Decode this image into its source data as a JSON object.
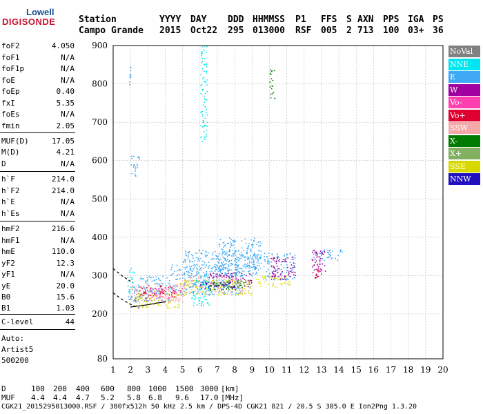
{
  "logo": {
    "line1": "Lowell",
    "line2": "DIGISONDE"
  },
  "header": {
    "row1": [
      "Station",
      "YYYY",
      "DAY",
      "DDD",
      "HHMMSS",
      "P1",
      "FFS",
      "S",
      "AXN",
      "PPS",
      "IGA",
      "PS"
    ],
    "row2": [
      "Campo Grande",
      "2015",
      "Oct22",
      "295",
      "013000",
      "RSF",
      "005",
      "2",
      "713",
      "100",
      "03+",
      "36"
    ]
  },
  "params": [
    {
      "name": "foF2",
      "value": "4.050"
    },
    {
      "name": "foF1",
      "value": "N/A"
    },
    {
      "name": "foF1p",
      "value": "N/A"
    },
    {
      "name": "foE",
      "value": "N/A"
    },
    {
      "name": "foEp",
      "value": "0.40"
    },
    {
      "name": "fxI",
      "value": "5.35"
    },
    {
      "name": "foEs",
      "value": "N/A"
    },
    {
      "name": "fmin",
      "value": "2.05"
    },
    {
      "name": "MUF(D)",
      "value": "17.05"
    },
    {
      "name": "M(D)",
      "value": "4.21"
    },
    {
      "name": "D",
      "value": "N/A"
    },
    {
      "name": "h`F",
      "value": "214.0"
    },
    {
      "name": "h`F2",
      "value": "214.0"
    },
    {
      "name": "h`E",
      "value": "N/A"
    },
    {
      "name": "h`Es",
      "value": "N/A"
    },
    {
      "name": "hmF2",
      "value": "216.6"
    },
    {
      "name": "hmF1",
      "value": "N/A"
    },
    {
      "name": "hmE",
      "value": "110.0"
    },
    {
      "name": "yF2",
      "value": "12.3"
    },
    {
      "name": "yF1",
      "value": "N/A"
    },
    {
      "name": "yE",
      "value": "20.0"
    },
    {
      "name": "B0",
      "value": "15.6"
    },
    {
      "name": "B1",
      "value": "1.03"
    },
    {
      "name": "C-level",
      "value": "44"
    }
  ],
  "auto": {
    "line1": "Auto:",
    "line2": "Artist5",
    "line3": "500200"
  },
  "legend": [
    {
      "label": "NoVal",
      "color": "#808080"
    },
    {
      "label": "NNE",
      "color": "#00e5ee"
    },
    {
      "label": "E",
      "color": "#3fa9f5"
    },
    {
      "label": "W",
      "color": "#a000a0"
    },
    {
      "label": "Vo-",
      "color": "#ff40b0"
    },
    {
      "label": "Vo+",
      "color": "#e00030"
    },
    {
      "label": "SSW",
      "color": "#f4a8a8"
    },
    {
      "label": "X-",
      "color": "#007a00"
    },
    {
      "label": "X+",
      "color": "#80b060"
    },
    {
      "label": "SSE",
      "color": "#d8d800"
    },
    {
      "label": "NNW",
      "color": "#2010c0"
    }
  ],
  "footer": {
    "d_label": "D",
    "d_values": [
      "100",
      "200",
      "400",
      "600",
      "800",
      "1000",
      "1500",
      "3000",
      "[km]"
    ],
    "muf_label": "MUF",
    "muf_values": [
      "4.4",
      "4.4",
      "4.7",
      "5.2",
      "5.8",
      "6.8",
      "9.6",
      "17.0",
      "[MHz]"
    ],
    "file_line": "CGK21_2015295013000.RSF / 380fx512h 50 kHz 2.5 km / DPS-4D CGK21 821 / 20.5 S 305.0 E Ion2Png 1.3.20"
  },
  "chart_data": {
    "type": "scatter",
    "xlim": [
      1,
      20
    ],
    "ylim": [
      80,
      900
    ],
    "x_ticks": [
      1,
      2,
      3,
      4,
      5,
      6,
      7,
      8,
      9,
      10,
      11,
      12,
      13,
      14,
      15,
      16,
      17,
      18,
      19,
      20
    ],
    "y_ticks": [
      80,
      200,
      300,
      400,
      500,
      600,
      700,
      800,
      900
    ],
    "grid": true,
    "legend_position": "right",
    "trace_fitted": [
      [
        2.0,
        218
      ],
      [
        2.5,
        221
      ],
      [
        3.0,
        224
      ],
      [
        3.5,
        228
      ],
      [
        4.05,
        232
      ]
    ],
    "trace_dashed": [
      [
        1.0,
        255
      ],
      [
        1.5,
        238
      ],
      [
        2.0,
        225
      ],
      [
        2.5,
        215
      ]
    ],
    "trace_upper_dashed": [
      [
        1.0,
        318
      ],
      [
        1.5,
        300
      ],
      [
        2.0,
        285
      ]
    ],
    "series": [
      {
        "name": "E",
        "clusters": [
          [
            1.8,
            2.4,
            225,
            270
          ],
          [
            2.4,
            4.2,
            235,
            300
          ],
          [
            4.2,
            8.5,
            250,
            330
          ],
          [
            5,
            9.5,
            300,
            370
          ],
          [
            7,
            9.5,
            320,
            400
          ],
          [
            9.6,
            11.5,
            290,
            360
          ],
          [
            12.5,
            14.2,
            340,
            370
          ],
          [
            1.9,
            2.0,
            780,
            860
          ],
          [
            2.0,
            2.5,
            560,
            620
          ]
        ]
      },
      {
        "name": "SSE",
        "clusters": [
          [
            2.2,
            4.8,
            215,
            260
          ],
          [
            4.8,
            9.0,
            250,
            290
          ],
          [
            9.2,
            11.2,
            270,
            300
          ]
        ]
      },
      {
        "name": "SSW",
        "clusters": [
          [
            2.0,
            5.0,
            230,
            280
          ],
          [
            5.0,
            8.5,
            255,
            300
          ]
        ]
      },
      {
        "name": "W",
        "clusters": [
          [
            6.5,
            9.0,
            270,
            310
          ],
          [
            10.0,
            11.5,
            290,
            350
          ],
          [
            12.4,
            13.2,
            300,
            370
          ]
        ]
      },
      {
        "name": "NNE",
        "clusters": [
          [
            1.8,
            2.2,
            250,
            320
          ],
          [
            5.5,
            6.5,
            220,
            300
          ],
          [
            6.0,
            6.4,
            650,
            900
          ]
        ]
      },
      {
        "name": "X-",
        "clusters": [
          [
            6.5,
            8.5,
            260,
            285
          ],
          [
            10.0,
            10.3,
            760,
            840
          ]
        ]
      },
      {
        "name": "Vo-",
        "clusters": [
          [
            3.0,
            5.0,
            240,
            270
          ],
          [
            12.7,
            13.0,
            310,
            360
          ]
        ]
      },
      {
        "name": "Vo+",
        "clusters": [
          [
            2.5,
            4.5,
            250,
            275
          ],
          [
            12.6,
            12.8,
            290,
            320
          ]
        ]
      },
      {
        "name": "X+",
        "clusters": [
          [
            7.0,
            9.0,
            270,
            290
          ]
        ]
      },
      {
        "name": "NNW",
        "clusters": [
          [
            6.0,
            8.0,
            265,
            285
          ]
        ]
      },
      {
        "name": "NoVal",
        "clusters": [
          [
            2.0,
            3.0,
            235,
            260
          ]
        ]
      }
    ]
  }
}
